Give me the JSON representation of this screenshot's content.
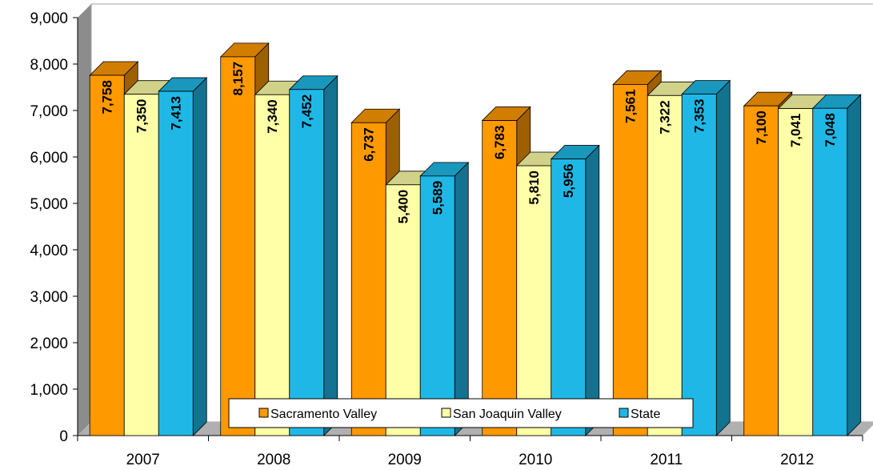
{
  "chart_data": {
    "type": "bar",
    "title": "",
    "xlabel": "",
    "ylabel": "",
    "categories": [
      "2007",
      "2008",
      "2009",
      "2010",
      "2011",
      "2012"
    ],
    "series": [
      {
        "name": "Sacramento Valley",
        "color": "#FF9900",
        "values": [
          7758,
          8157,
          6737,
          6783,
          7561,
          7100
        ],
        "labels": [
          "7,758",
          "8,157",
          "6,737",
          "6,783",
          "7,561",
          "7,100"
        ]
      },
      {
        "name": "San Joaquin Valley",
        "color": "#FFFFA8",
        "values": [
          7350,
          7340,
          5400,
          5810,
          7322,
          7041
        ],
        "labels": [
          "7,350",
          "7,340",
          "5,400",
          "5,810",
          "7,322",
          "7,041"
        ]
      },
      {
        "name": "State",
        "color": "#1FB8E6",
        "values": [
          7413,
          7452,
          5589,
          5956,
          7353,
          7048
        ],
        "labels": [
          "7,413",
          "7,452",
          "5,589",
          "5,956",
          "7,353",
          "7,048"
        ]
      }
    ],
    "ylim": [
      0,
      9000
    ],
    "yticks": [
      "0",
      "1,000",
      "2,000",
      "3,000",
      "4,000",
      "5,000",
      "6,000",
      "7,000",
      "8,000",
      "9,000"
    ],
    "grid": false,
    "legend_position": "bottom-center",
    "style": "3d-bar"
  }
}
